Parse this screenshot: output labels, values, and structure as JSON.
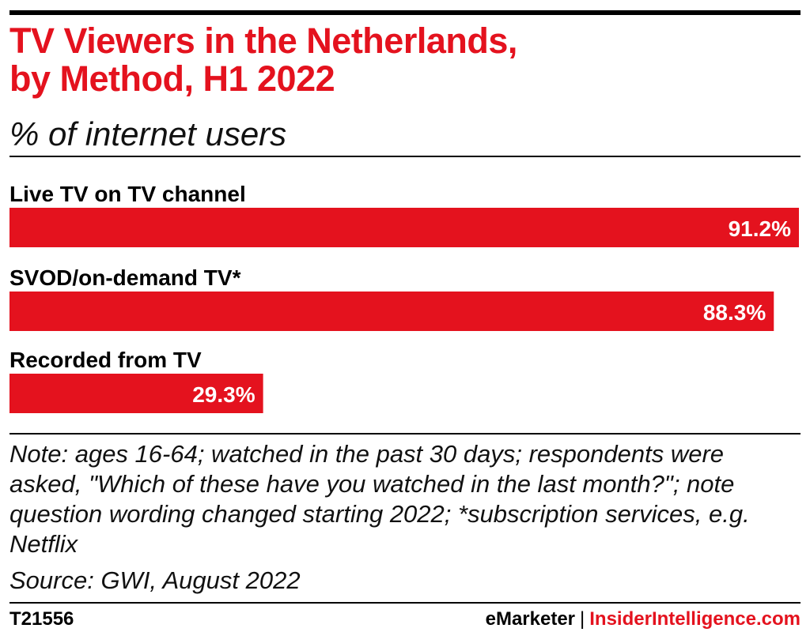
{
  "chart_data": {
    "type": "bar",
    "orientation": "horizontal",
    "title": "TV Viewers in the Netherlands,\n by Method, H1 2022",
    "subtitle": "% of internet users",
    "categories": [
      "Live TV on TV channel",
      "SVOD/on-demand TV*",
      "Recorded from TV"
    ],
    "values": [
      91.2,
      88.3,
      29.3
    ],
    "value_labels": [
      "91.2%",
      "88.3%",
      "29.3%"
    ],
    "xlim": [
      0,
      91.2
    ],
    "grid": false,
    "bar_color": "#e4121e"
  },
  "note": "Note: ages 16-64; watched in the past 30 days; respondents were asked, \"Which of these have you watched in the last month?\"; note question wording changed starting 2022; *subscription services, e.g. Netflix",
  "source": "Source: GWI, August 2022",
  "footer": {
    "chart_id": "T21556",
    "brand": "eMarketer",
    "separator": "|",
    "site": "InsiderIntelligence.com"
  },
  "colors": {
    "accent": "#e4121e",
    "text": "#000000"
  }
}
